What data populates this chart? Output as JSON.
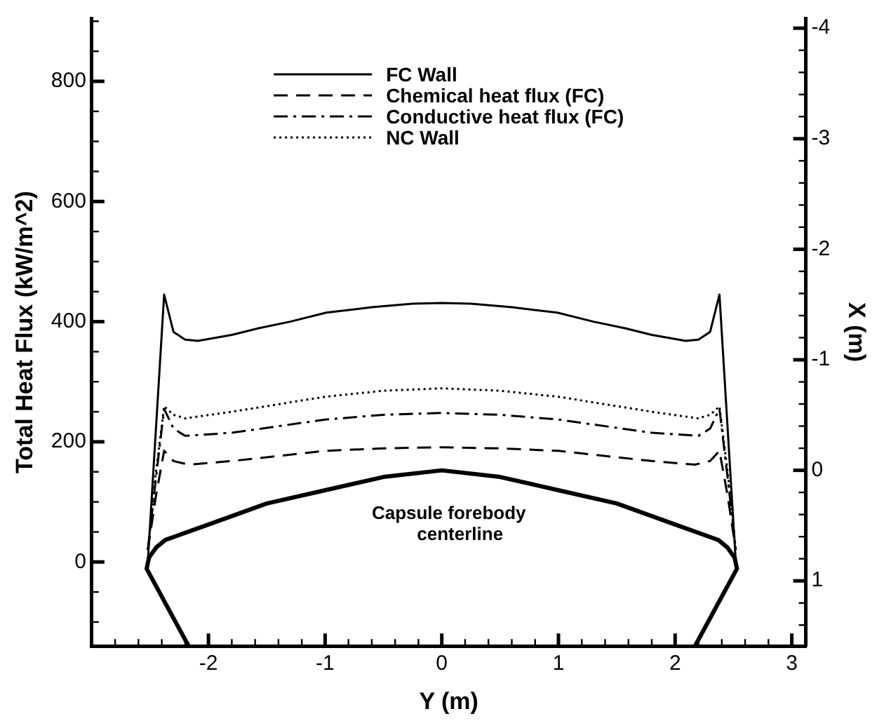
{
  "chart_data": {
    "type": "line",
    "xlabel": "Y (m)",
    "ylabel": "Total Heat Flux (kW/m^2)",
    "y2label": "X (m)",
    "xlim": [
      -3,
      3.12
    ],
    "ylim": [
      -140,
      905
    ],
    "y2lim": [
      1.59,
      -4.09
    ],
    "xticks": [
      {
        "value": -2.8,
        "label": null
      },
      {
        "value": -2.6,
        "label": null
      },
      {
        "value": -2.4,
        "label": null
      },
      {
        "value": -2.2,
        "label": null
      },
      -2,
      {
        "value": -1.8,
        "label": null
      },
      {
        "value": -1.6,
        "label": null
      },
      {
        "value": -1.4,
        "label": null
      },
      {
        "value": -1.2,
        "label": null
      },
      -1,
      {
        "value": -0.8,
        "label": null
      },
      {
        "value": -0.6,
        "label": null
      },
      {
        "value": -0.4,
        "label": null
      },
      {
        "value": -0.2,
        "label": null
      },
      0,
      {
        "value": 0.2,
        "label": null
      },
      {
        "value": 0.4,
        "label": null
      },
      {
        "value": 0.6,
        "label": null
      },
      {
        "value": 0.8,
        "label": null
      },
      1,
      {
        "value": 1.2,
        "label": null
      },
      {
        "value": 1.4,
        "label": null
      },
      {
        "value": 1.6,
        "label": null
      },
      {
        "value": 1.8,
        "label": null
      },
      2,
      {
        "value": 2.2,
        "label": null
      },
      {
        "value": 2.4,
        "label": null
      },
      {
        "value": 2.6,
        "label": null
      },
      {
        "value": 2.8,
        "label": null
      },
      3
    ],
    "yticks": [
      {
        "value": -100,
        "label": null
      },
      {
        "value": -50,
        "label": null
      },
      0,
      {
        "value": 50,
        "label": null
      },
      {
        "value": 100,
        "label": null
      },
      {
        "value": 150,
        "label": null
      },
      200,
      {
        "value": 250,
        "label": null
      },
      {
        "value": 300,
        "label": null
      },
      {
        "value": 350,
        "label": null
      },
      400,
      {
        "value": 450,
        "label": null
      },
      {
        "value": 500,
        "label": null
      },
      {
        "value": 550,
        "label": null
      },
      600,
      {
        "value": 650,
        "label": null
      },
      {
        "value": 700,
        "label": null
      },
      {
        "value": 750,
        "label": null
      },
      800,
      {
        "value": 850,
        "label": null
      },
      {
        "value": 900,
        "label": null
      }
    ],
    "y2ticks": [
      {
        "value": 1.4,
        "label": null
      },
      {
        "value": 1.2,
        "label": null
      },
      1,
      {
        "value": 0.8,
        "label": null
      },
      {
        "value": 0.6,
        "label": null
      },
      {
        "value": 0.4,
        "label": null
      },
      {
        "value": 0.2,
        "label": null
      },
      0,
      {
        "value": -0.2,
        "label": null
      },
      {
        "value": -0.4,
        "label": null
      },
      {
        "value": -0.6,
        "label": null
      },
      {
        "value": -0.8,
        "label": null
      },
      -1,
      {
        "value": -1.2,
        "label": null
      },
      {
        "value": -1.4,
        "label": null
      },
      {
        "value": -1.6,
        "label": null
      },
      {
        "value": -1.8,
        "label": null
      },
      -2,
      {
        "value": -2.2,
        "label": null
      },
      {
        "value": -2.4,
        "label": null
      },
      {
        "value": -2.6,
        "label": null
      },
      {
        "value": -2.8,
        "label": null
      },
      -3,
      {
        "value": -3.2,
        "label": null
      },
      {
        "value": -3.4,
        "label": null
      },
      {
        "value": -3.6,
        "label": null
      },
      {
        "value": -3.8,
        "label": null
      },
      -4
    ],
    "grid": false,
    "legend": "top",
    "marker": "none",
    "annotations": [
      "Capsule forebody centerline"
    ],
    "series": [
      {
        "name": "FC Wall",
        "color": "#000000",
        "line_style": "solid",
        "x": [
          -2.52,
          -2.38,
          -2.3,
          -2.2,
          -2.09,
          -1.8,
          -1.57,
          -1.3,
          -0.99,
          -0.6,
          -0.25,
          0,
          0.25,
          0.6,
          0.99,
          1.3,
          1.57,
          1.8,
          2.09,
          2.2,
          2.3,
          2.38,
          2.52
        ],
        "values": [
          0,
          445,
          383,
          370,
          368,
          378,
          389,
          400,
          415,
          424,
          430,
          431,
          430,
          424,
          415,
          400,
          389,
          378,
          368,
          370,
          383,
          445,
          0
        ]
      },
      {
        "name": "Chemical heat flux (FC)",
        "color": "#000000",
        "line_style": "dashed",
        "x": [
          -2.52,
          -2.45,
          -2.38,
          -2.3,
          -2.17,
          -1.8,
          -1,
          -0.5,
          0,
          0.5,
          1,
          1.8,
          2.17,
          2.3,
          2.38,
          2.45,
          2.52
        ],
        "values": [
          20,
          110,
          185,
          168,
          162,
          168,
          185,
          189,
          191,
          189,
          185,
          168,
          162,
          168,
          185,
          110,
          20
        ]
      },
      {
        "name": "Conductive heat flux (FC)",
        "color": "#000000",
        "line_style": "dashdot",
        "x": [
          -2.52,
          -2.45,
          -2.38,
          -2.3,
          -2.2,
          -1.8,
          -1,
          -0.5,
          0,
          0.5,
          1,
          1.8,
          2.2,
          2.3,
          2.38,
          2.45,
          2.52
        ],
        "values": [
          20,
          140,
          255,
          222,
          210,
          215,
          237,
          245,
          248,
          245,
          237,
          215,
          210,
          222,
          255,
          140,
          20
        ]
      },
      {
        "name": "NC Wall",
        "color": "#000000",
        "line_style": "dotted",
        "x": [
          -2.52,
          -2.45,
          -2.38,
          -2.3,
          -2.2,
          -1.8,
          -1,
          -0.5,
          0,
          0.5,
          1,
          1.8,
          2.2,
          2.3,
          2.38,
          2.45,
          2.52
        ],
        "values": [
          20,
          150,
          259,
          245,
          239,
          250,
          275,
          285,
          289,
          285,
          275,
          250,
          239,
          245,
          259,
          150,
          20
        ]
      },
      {
        "color": "#000000",
        "line_style": "solid",
        "axis": "y2",
        "x": [
          -2.17,
          -2.53,
          -2.51,
          -2.45,
          -2.37,
          -2,
          -1.5,
          -1,
          -0.5,
          0,
          0.5,
          1,
          1.5,
          2,
          2.37,
          2.45,
          2.51,
          2.53,
          2.17
        ],
        "values": [
          1.59,
          0.89,
          0.79,
          0.7,
          0.63,
          0.49,
          0.3,
          0.18,
          0.06,
          0,
          0.06,
          0.18,
          0.3,
          0.49,
          0.63,
          0.7,
          0.79,
          0.89,
          1.59
        ]
      }
    ]
  }
}
